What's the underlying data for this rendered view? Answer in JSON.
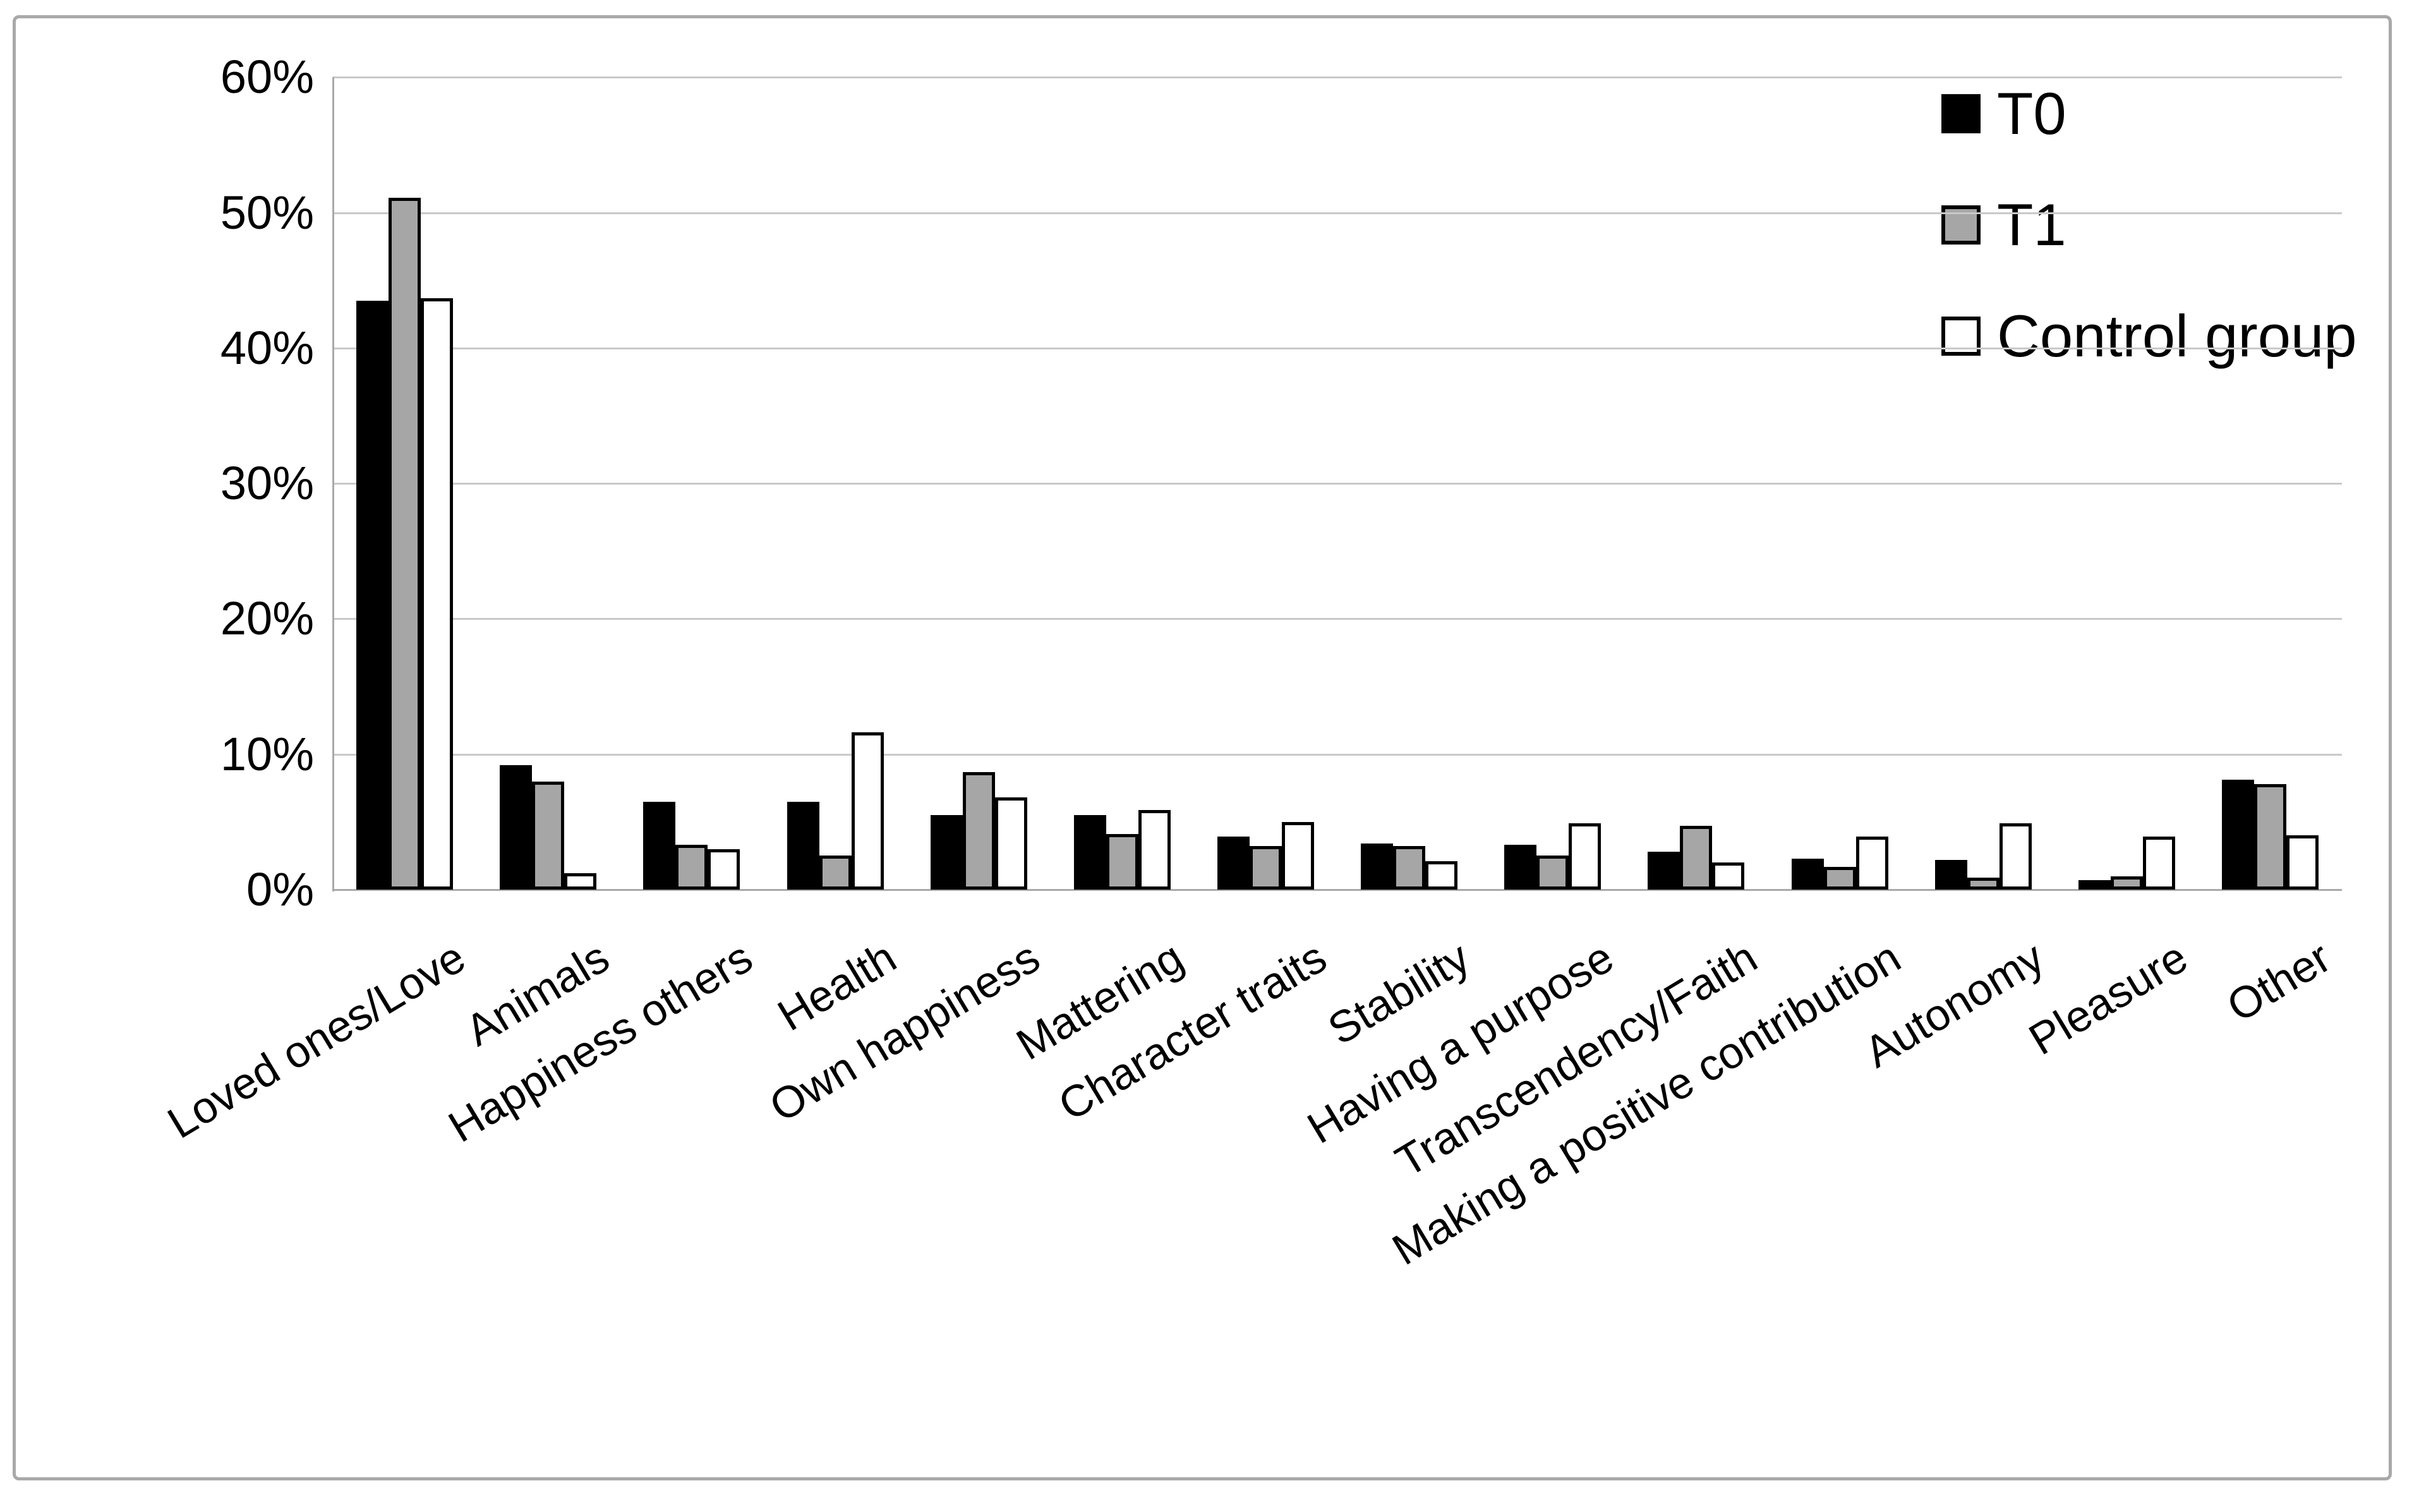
{
  "figure": {
    "background": "#ffffff",
    "border_color": "#a9a9a9"
  },
  "axes": {
    "y_tick_labels": [
      "0%",
      "10%",
      "20%",
      "30%",
      "40%",
      "50%",
      "60%"
    ],
    "y_min": 0,
    "y_max": 60,
    "grid": "horizontal",
    "gridline_color": "#c9c9c9",
    "axis_line_color": "#a9a9a9"
  },
  "legend": {
    "position": "top-right",
    "items": [
      {
        "label": "T0",
        "fill": "#000000",
        "border": "#000000"
      },
      {
        "label": "T1",
        "fill": "#a6a6a6",
        "border": "#000000"
      },
      {
        "label": "Control group",
        "fill": "#ffffff",
        "border": "#000000"
      }
    ]
  },
  "chart_data": {
    "type": "bar",
    "title": "",
    "xlabel": "",
    "ylabel": "",
    "ylim": [
      0,
      60
    ],
    "y_unit": "percent",
    "categories": [
      "Loved ones/Love",
      "Animals",
      "Happiness others",
      "Health",
      "Own happiness",
      "Mattering",
      "Character traits",
      "Stability",
      "Having a purpose",
      "Transcendency/Faith",
      "Making a positive contribution",
      "Autonomy",
      "Pleasure",
      "Other"
    ],
    "series": [
      {
        "name": "T0",
        "color": "#000000",
        "values": [
          43.5,
          9.2,
          6.5,
          6.5,
          5.5,
          5.5,
          3.9,
          3.4,
          3.3,
          2.8,
          2.3,
          2.2,
          0.7,
          8.1
        ]
      },
      {
        "name": "T1",
        "color": "#a6a6a6",
        "values": [
          51.1,
          8.0,
          3.3,
          2.5,
          8.7,
          4.1,
          3.2,
          3.2,
          2.5,
          4.7,
          1.7,
          0.9,
          1.0,
          7.8
        ]
      },
      {
        "name": "Control group",
        "color": "#ffffff",
        "values": [
          43.7,
          1.2,
          3.0,
          11.6,
          6.8,
          5.9,
          5.0,
          2.1,
          4.9,
          2.0,
          3.9,
          4.9,
          3.9,
          4.0
        ]
      }
    ]
  }
}
